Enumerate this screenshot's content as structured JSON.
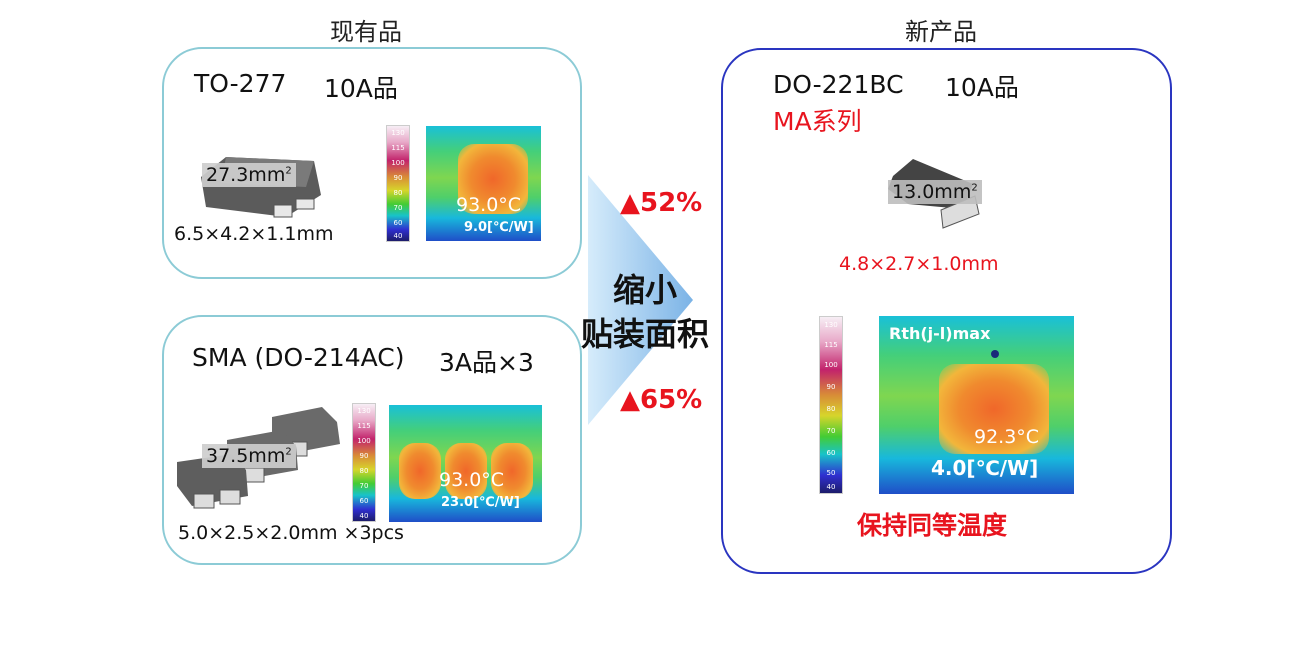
{
  "existing": {
    "heading": "现有品",
    "to277": {
      "package": "TO-277",
      "rating": "10A品",
      "area_value": "27.3mm",
      "area_sup": "2",
      "dims": "6.5×4.2×1.1mm",
      "temp": "93.0°C",
      "rth": "9.0[℃/W]"
    },
    "sma": {
      "package": "SMA (DO-214AC)",
      "rating": "3A品×3",
      "area_value": "37.5mm",
      "area_sup": "2",
      "dims": "5.0×2.5×2.0mm ×3pcs",
      "temp": "93.0°C",
      "rth": "23.0[℃/W]"
    }
  },
  "center": {
    "line1": "缩小",
    "line2": "贴装面积",
    "reduction_top": "▲52%",
    "reduction_bottom": "▲65%"
  },
  "new_product": {
    "heading": "新产品",
    "package": "DO-221BC",
    "rating": "10A品",
    "series": "MA系列",
    "area_value": "13.0mm",
    "area_sup": "2",
    "dims": "4.8×2.7×1.0mm",
    "rth_label": "Rth(j-l)max",
    "temp": "92.3°C",
    "rth": "4.0[℃/W]",
    "footer": "保持同等温度"
  },
  "colors": {
    "accent_red": "#e8141e",
    "old_border": "#8ccbd6",
    "new_border": "#2a35c0",
    "arrow": "#8fc1ea"
  }
}
